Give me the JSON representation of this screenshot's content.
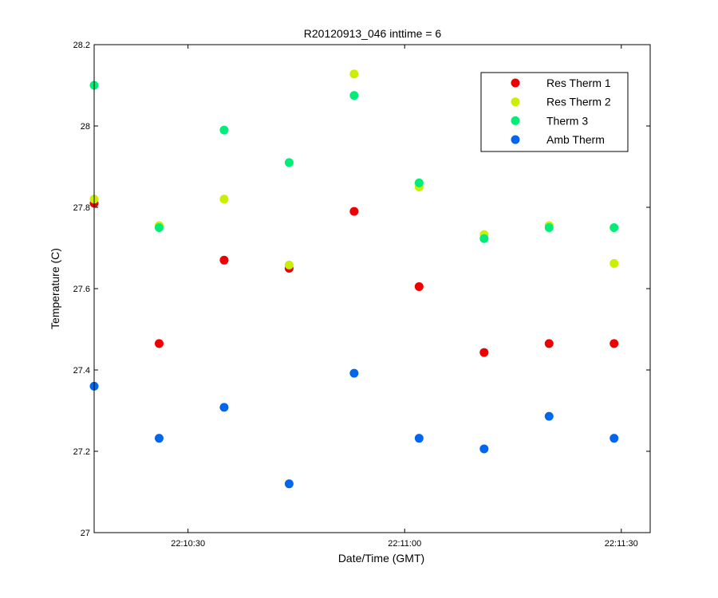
{
  "chart_data": {
    "type": "scatter",
    "title": "R20120913_046 inttime = 6",
    "xlabel": "Date/Time (GMT)",
    "ylabel": "Temperature (C)",
    "xlim": [
      "22:10:17",
      "22:11:34"
    ],
    "ylim": [
      27,
      28.2
    ],
    "x_ticks": [
      "22:10:30",
      "22:11:00",
      "22:11:30"
    ],
    "y_ticks": [
      "27",
      "27.2",
      "27.4",
      "27.6",
      "27.8",
      "28",
      "28.2"
    ],
    "grid": false,
    "legend_position": "top-right",
    "x": [
      "22:10:17",
      "22:10:26",
      "22:10:35",
      "22:10:44",
      "22:10:53",
      "22:11:02",
      "22:11:11",
      "22:11:20",
      "22:11:29"
    ],
    "series": [
      {
        "name": "Res Therm 1",
        "color": "#ee0000",
        "values": [
          27.81,
          27.465,
          27.67,
          27.65,
          27.79,
          27.605,
          27.443,
          27.465,
          27.465
        ]
      },
      {
        "name": "Res Therm 2",
        "color": "#ccee00",
        "values": [
          27.82,
          27.755,
          27.82,
          27.658,
          28.128,
          27.85,
          27.733,
          27.755,
          27.662
        ]
      },
      {
        "name": "Therm 3",
        "color": "#00ee77",
        "values": [
          28.1,
          27.75,
          27.99,
          27.91,
          28.075,
          27.86,
          27.723,
          27.75,
          27.75
        ]
      },
      {
        "name": "Amb Therm",
        "color": "#0066ee",
        "values": [
          27.36,
          27.232,
          27.308,
          27.12,
          27.392,
          27.232,
          27.206,
          27.286,
          27.232
        ]
      }
    ]
  }
}
